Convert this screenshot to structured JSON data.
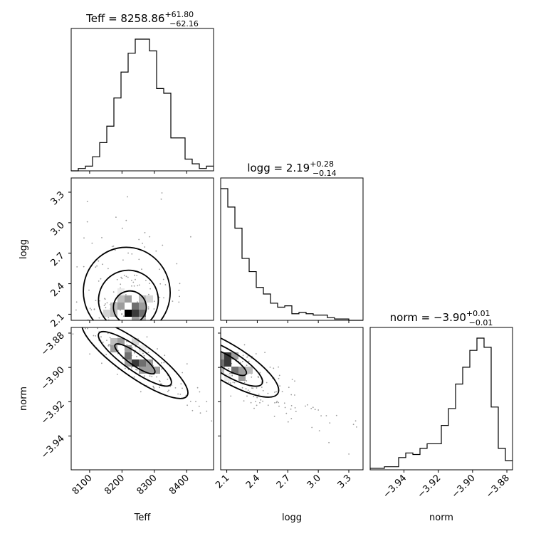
{
  "chart_data": {
    "type": "corner",
    "parameters": [
      {
        "name": "Teff",
        "title": {
          "prefix": "Teff = ",
          "value": "8258.86",
          "plus": "+61.80",
          "minus": "−62.16"
        },
        "xlabel": "Teff",
        "range": [
          8043,
          8483
        ],
        "ticks": [
          "8100",
          "8200",
          "8300",
          "8400"
        ],
        "tick_values": [
          8100,
          8200,
          8300,
          8400
        ],
        "hist_edges_start": 8043,
        "hist_bin_width": 22,
        "hist_counts": [
          0,
          1,
          2,
          6,
          12,
          19,
          31,
          42,
          50,
          56,
          56,
          51,
          35,
          33,
          14,
          14,
          5,
          3,
          1,
          2
        ]
      },
      {
        "name": "logg",
        "title": {
          "prefix": "logg = ",
          "value": "2.19",
          "plus": "+0.28",
          "minus": "−0.14"
        },
        "xlabel": "logg",
        "ylabel": "logg",
        "range": [
          2.04,
          3.44
        ],
        "ticks": [
          "2.1",
          "2.4",
          "2.7",
          "3.0",
          "3.3"
        ],
        "tick_values": [
          2.1,
          2.4,
          2.7,
          3.0,
          3.3
        ],
        "hist_edges_start": 2.04,
        "hist_bin_width": 0.07,
        "hist_counts": [
          100,
          86,
          70,
          47,
          37,
          25,
          20,
          13,
          10,
          11,
          5,
          6,
          5,
          4,
          4,
          2,
          1,
          1,
          0,
          0
        ]
      },
      {
        "name": "norm",
        "title": {
          "prefix": "norm = ",
          "value": "−3.90",
          "plus": "+0.01",
          "minus": "−0.01"
        },
        "xlabel": "norm",
        "ylabel": "norm",
        "range": [
          -3.9597,
          -3.8767
        ],
        "ticks": [
          "−3.94",
          "−3.92",
          "−3.90",
          "−3.88"
        ],
        "tick_values": [
          -3.94,
          -3.92,
          -3.9,
          -3.88
        ],
        "hist_edges_start": -3.9597,
        "hist_bin_width": 0.00415,
        "hist_counts": [
          1,
          1,
          2,
          2,
          8,
          11,
          10,
          14,
          17,
          17,
          29,
          40,
          56,
          67,
          78,
          86,
          80,
          41,
          14,
          6
        ]
      }
    ],
    "scatter_2d": [
      {
        "x_param": "Teff",
        "y_param": "logg",
        "density_peak": {
          "x": 8230,
          "y": 2.08
        }
      },
      {
        "x_param": "Teff",
        "y_param": "norm",
        "density_peak": {
          "x": 8240,
          "y": -3.895
        }
      },
      {
        "x_param": "logg",
        "y_param": "norm",
        "density_peak": {
          "x": 2.1,
          "y": -3.897
        }
      }
    ],
    "grid": false,
    "legend": "none"
  }
}
